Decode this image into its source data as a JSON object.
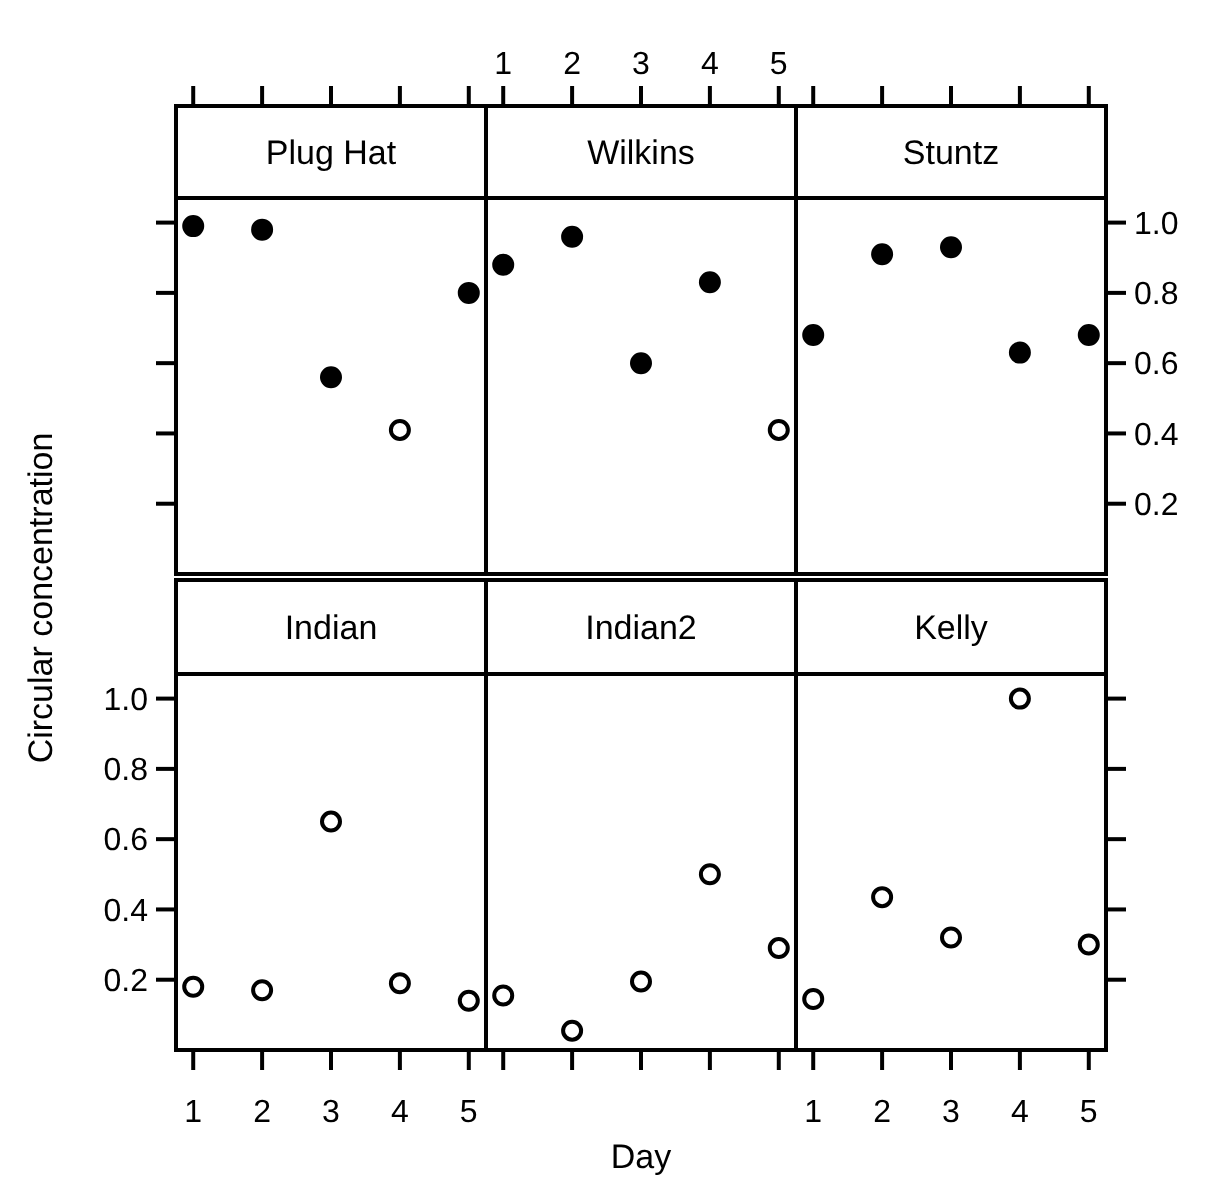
{
  "chart_data": [
    {
      "type": "scatter",
      "title": "Plug Hat",
      "ylabel": "Circular concentration",
      "x": [
        1,
        2,
        3,
        4,
        5
      ],
      "values": [
        0.99,
        0.98,
        0.56,
        0.41,
        0.8
      ],
      "colors": [
        "#000000",
        "#000000",
        "#000000",
        "#ffffff",
        "#000000"
      ],
      "xlim": [
        0.75,
        5.25
      ],
      "xticks": [
        1,
        2,
        3,
        4,
        5
      ],
      "ylim": [
        0,
        1.07
      ],
      "yticks": [
        0.2,
        0.4,
        0.6,
        0.8,
        1
      ],
      "tick_labels": false,
      "marker": "circle"
    },
    {
      "type": "scatter",
      "title": "Wilkins",
      "x": [
        1,
        2,
        3,
        4,
        5
      ],
      "values": [
        0.88,
        0.96,
        0.6,
        0.83,
        0.41
      ],
      "colors": [
        "#000000",
        "#000000",
        "#000000",
        "#000000",
        "#ffffff"
      ],
      "xlim": [
        0.75,
        5.25
      ],
      "xticks": [
        1,
        2,
        3,
        4,
        5
      ],
      "ylim": [
        0,
        1.07
      ],
      "tick_labels": "x",
      "marker": "circle"
    },
    {
      "type": "scatter",
      "title": "Stuntz",
      "x": [
        1,
        2,
        3,
        4,
        5
      ],
      "values": [
        0.68,
        0.91,
        0.93,
        0.63,
        0.68
      ],
      "colors": [
        "#000000",
        "#000000",
        "#000000",
        "#000000",
        "#000000"
      ],
      "xlim": [
        0.75,
        5.25
      ],
      "xticks": [
        1,
        2,
        3,
        4,
        5
      ],
      "ylim": [
        0,
        1.07
      ],
      "yticks": [
        0.2,
        0.4,
        0.6,
        0.8,
        {
          "value": 1,
          "label": "1.0"
        }
      ],
      "tick_labels": "y",
      "marker": "circle"
    },
    {
      "type": "scatter",
      "title": "Indian",
      "x": [
        1,
        2,
        3,
        4,
        5
      ],
      "values": [
        0.18,
        0.17,
        0.65,
        0.19,
        0.14
      ],
      "colors": [
        "#ffffff",
        "#ffffff",
        "#ffffff",
        "#ffffff",
        "#ffffff"
      ],
      "xlim": [
        0.75,
        5.25
      ],
      "xticks": [
        1,
        2,
        3,
        4,
        5
      ],
      "ylim": [
        0,
        1.07
      ],
      "yticks": [
        0.2,
        0.4,
        0.6,
        0.8,
        {
          "value": 1,
          "label": "1.0"
        }
      ],
      "tick_labels": "xy",
      "marker": "circle"
    },
    {
      "type": "scatter",
      "title": "Indian2",
      "xlabel": "Day",
      "x": [
        1,
        2,
        3,
        4,
        5
      ],
      "values": [
        0.155,
        0.055,
        0.195,
        0.5,
        0.29
      ],
      "colors": [
        "#ffffff",
        "#ffffff",
        "#ffffff",
        "#ffffff",
        "#ffffff"
      ],
      "xlim": [
        0.75,
        5.25
      ],
      "xticks": [
        1,
        2,
        3,
        4,
        5
      ],
      "ylim": [
        0,
        1.07
      ],
      "tick_labels": false,
      "marker": "circle"
    },
    {
      "type": "scatter",
      "title": "Kelly",
      "x": [
        1,
        2,
        3,
        4,
        5
      ],
      "values": [
        0.145,
        0.435,
        0.32,
        1.0,
        0.3
      ],
      "colors": [
        "#ffffff",
        "#ffffff",
        "#ffffff",
        "#ffffff",
        "#ffffff"
      ],
      "xlim": [
        0.75,
        5.25
      ],
      "xticks": [
        1,
        2,
        3,
        4,
        5
      ],
      "ylim": [
        0,
        1.07
      ],
      "yticks": [
        0.2,
        0.4,
        0.6,
        0.8,
        1
      ],
      "tick_labels": "x",
      "marker": "circle"
    }
  ]
}
